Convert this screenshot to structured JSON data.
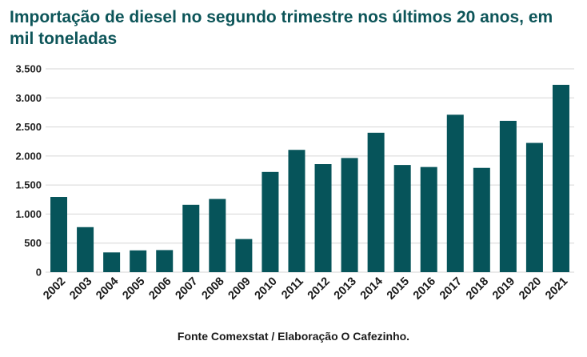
{
  "chart_data": {
    "type": "bar",
    "title": "Importação de diesel no segundo trimestre nos últimos 20 anos, em mil toneladas",
    "categories": [
      "2002",
      "2003",
      "2004",
      "2005",
      "2006",
      "2007",
      "2008",
      "2009",
      "2010",
      "2011",
      "2012",
      "2013",
      "2014",
      "2015",
      "2016",
      "2017",
      "2018",
      "2019",
      "2020",
      "2021"
    ],
    "values": [
      1295,
      775,
      340,
      375,
      380,
      1160,
      1260,
      570,
      1725,
      2105,
      1860,
      1965,
      2400,
      1845,
      1810,
      2710,
      1795,
      2605,
      2225,
      3225
    ],
    "ylim": [
      0,
      3500
    ],
    "yticks": [
      0,
      500,
      1000,
      1500,
      2000,
      2500,
      3000,
      3500
    ],
    "ytick_labels": [
      "0",
      "500",
      "1.000",
      "1.500",
      "2.000",
      "2.500",
      "3.000",
      "3.500"
    ],
    "grid": true,
    "source": "Fonte Comexstat / Elaboração O Cafezinho.",
    "colors": {
      "bar": "#06545a",
      "title": "#0d5559"
    }
  }
}
